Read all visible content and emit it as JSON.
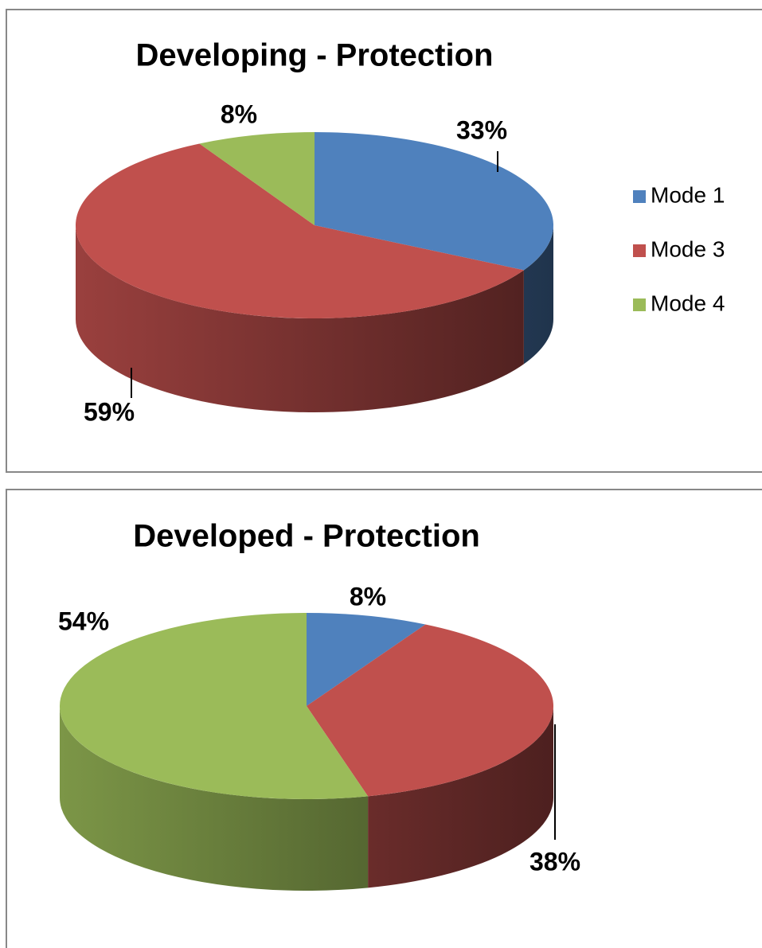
{
  "chart_data": [
    {
      "type": "pie3d",
      "title": "Developing - Protection",
      "categories": [
        "Mode 1",
        "Mode 3",
        "Mode 4"
      ],
      "values": [
        33,
        59,
        8
      ],
      "value_labels": [
        "33%",
        "59%",
        "8%"
      ],
      "colors": [
        "#4f81bd",
        "#c0504d",
        "#9bbb59"
      ],
      "legend": "right"
    },
    {
      "type": "pie3d",
      "title": "Developed - Protection",
      "values": [
        8,
        38,
        54
      ],
      "value_labels": [
        "8%",
        "38%",
        "54%"
      ],
      "colors": [
        "#4f81bd",
        "#c0504d",
        "#9bbb59"
      ]
    }
  ]
}
